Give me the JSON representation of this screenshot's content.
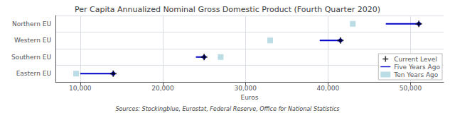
{
  "chart_data": {
    "type": "dumbbell",
    "title": "Per Capita Annualized Nominal Gross Domestic Product (Fourth Quarter 2020)",
    "xlabel": "Euros",
    "annotations": [
      "Sources: Stockingblue, Eurostat, Federal Reserve, Office for National Statistics"
    ],
    "orientation": "horizontal",
    "categories": [
      "Northern EU",
      "Western EU",
      "Southern EU",
      "Eastern EU"
    ],
    "series": [
      {
        "name": "Current Level",
        "color": "#000000",
        "marker": "plus",
        "values": [
          51000,
          41500,
          25000,
          14000
        ]
      },
      {
        "name": "Five Years Ago",
        "color": "#0000cc",
        "type": "line",
        "values": [
          47000,
          39000,
          24000,
          10000
        ]
      },
      {
        "name": "Ten Years Ago",
        "color": "#aad4e0",
        "marker": "square",
        "values": [
          43000,
          33000,
          27000,
          9500
        ]
      }
    ],
    "xlim": [
      7000,
      54000
    ],
    "xticks": [
      {
        "value": 10000,
        "label": "10,000"
      },
      {
        "value": 20000,
        "label": "20,000"
      },
      {
        "value": 30000,
        "label": "30,000"
      },
      {
        "value": 40000,
        "label": "40,000"
      },
      {
        "value": 50000,
        "label": "50,000"
      }
    ],
    "grid": true,
    "legend": "lower right"
  }
}
